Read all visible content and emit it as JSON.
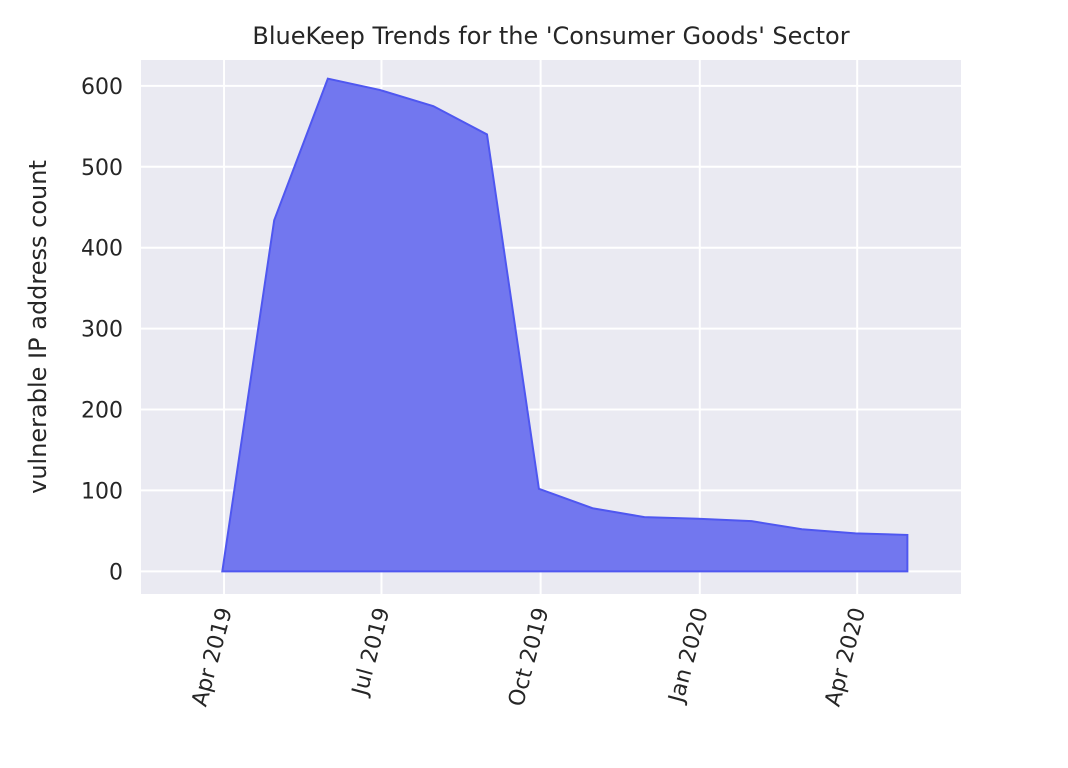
{
  "chart_data": {
    "type": "area",
    "title": "BlueKeep Trends for the 'Consumer Goods' Sector",
    "xlabel": "",
    "ylabel": "vulnerable IP address count",
    "x": [
      "2019-03-31",
      "2019-04-30",
      "2019-05-31",
      "2019-06-30",
      "2019-07-31",
      "2019-08-31",
      "2019-09-30",
      "2019-10-31",
      "2019-11-30",
      "2019-12-31",
      "2020-01-31",
      "2020-02-29",
      "2020-03-31",
      "2020-04-30"
    ],
    "values": [
      0,
      434,
      609,
      595,
      575,
      540,
      102,
      78,
      67,
      65,
      62,
      52,
      47,
      45
    ],
    "ylim": [
      -28,
      632
    ],
    "xlim": [
      "2019-02-12",
      "2020-05-31"
    ],
    "yticks": [
      0,
      100,
      200,
      300,
      400,
      500,
      600
    ],
    "xticks": [
      {
        "date": "2019-04-01",
        "label": "Apr 2019"
      },
      {
        "date": "2019-07-01",
        "label": "Jul 2019"
      },
      {
        "date": "2019-10-01",
        "label": "Oct 2019"
      },
      {
        "date": "2020-01-01",
        "label": "Jan 2020"
      },
      {
        "date": "2020-04-01",
        "label": "Apr 2020"
      }
    ],
    "grid": true,
    "colors": {
      "fill": "#7277ef",
      "edge": "#4f57f0",
      "background": "#eaeaf2",
      "grid": "#ffffff"
    }
  }
}
